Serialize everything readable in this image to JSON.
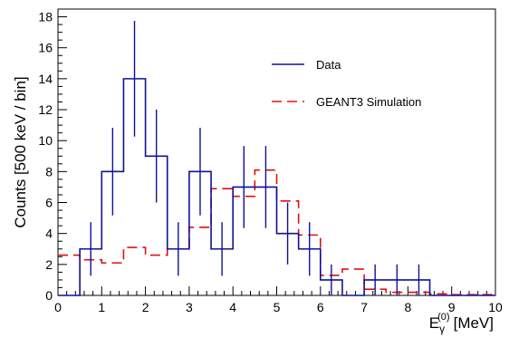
{
  "chart_data": {
    "type": "line",
    "xlabel": "E",
    "xlabel_sub": "γ",
    "xlabel_sup": "(0)",
    "xlabel_unit": "[MeV]",
    "ylabel": "Counts [500 keV / bin]",
    "xlim": [
      0,
      10
    ],
    "ylim": [
      0,
      18.5
    ],
    "x_ticks": [
      0,
      1,
      2,
      3,
      4,
      5,
      6,
      7,
      8,
      9,
      10
    ],
    "x_tick_labels": [
      "0",
      "1",
      "2",
      "3",
      "4",
      "5",
      "6",
      "7",
      "8",
      "9",
      "10"
    ],
    "y_ticks": [
      0,
      2,
      4,
      6,
      8,
      10,
      12,
      14,
      16,
      18
    ],
    "y_tick_labels": [
      "0",
      "2",
      "4",
      "6",
      "8",
      "10",
      "12",
      "14",
      "16",
      "18"
    ],
    "bin_edges": [
      0,
      0.5,
      1,
      1.5,
      2,
      2.5,
      3,
      3.5,
      4,
      4.5,
      5,
      5.5,
      6,
      6.5,
      7,
      7.5,
      8,
      8.5,
      9,
      9.5,
      10
    ],
    "legend_position": "top-right",
    "series": [
      {
        "name": "Data",
        "style": "step-with-errors",
        "color": "#10109a",
        "values": [
          0,
          3,
          8,
          14,
          9,
          3,
          8,
          3,
          7,
          7,
          4,
          3,
          1,
          0,
          1,
          1,
          1,
          0,
          0,
          0
        ],
        "errors": [
          0,
          1.73,
          2.83,
          3.74,
          3,
          1.73,
          2.83,
          1.73,
          2.65,
          2.65,
          2,
          1.73,
          1,
          0,
          1,
          1,
          1,
          0,
          0,
          0
        ]
      },
      {
        "name": "GEANT3 Simulation",
        "style": "dashed-step",
        "color": "#e01010",
        "values": [
          2.6,
          2.3,
          2.1,
          3.1,
          2.6,
          3.0,
          4.4,
          6.9,
          6.4,
          8.1,
          6.1,
          3.9,
          1.3,
          1.7,
          0.4,
          0.2,
          0.2,
          0.1,
          0.05,
          0.05
        ]
      }
    ]
  }
}
